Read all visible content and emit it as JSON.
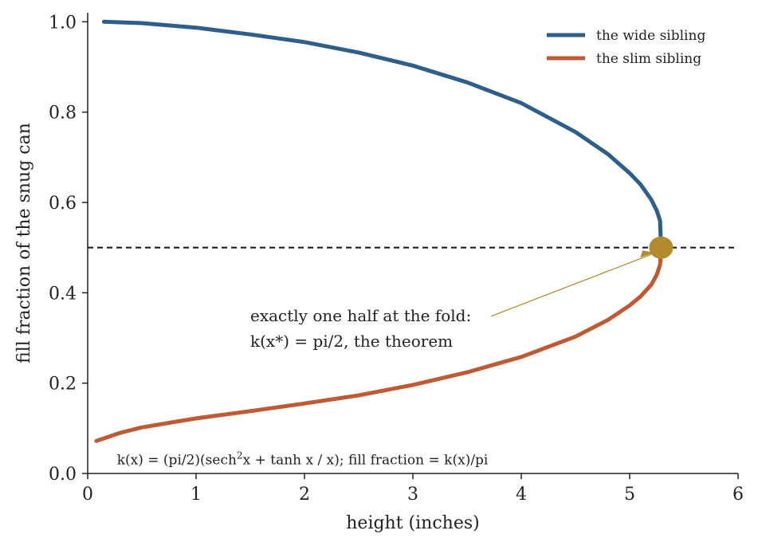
{
  "chart_data": {
    "type": "line",
    "title": "",
    "xlabel": "height (inches)",
    "ylabel": "fill fraction of the snug can",
    "xlim": [
      0,
      6
    ],
    "ylim": [
      0,
      1.02
    ],
    "x_ticks": [
      0,
      1,
      2,
      3,
      4,
      5,
      6
    ],
    "x_tick_labels": [
      "0",
      "1",
      "2",
      "3",
      "4",
      "5",
      "6"
    ],
    "y_ticks": [
      0.0,
      0.2,
      0.4,
      0.6,
      0.8,
      1.0
    ],
    "y_tick_labels": [
      "0.0",
      "0.2",
      "0.4",
      "0.6",
      "0.8",
      "1.0"
    ],
    "grid": false,
    "legend_placement": "top-right",
    "series": [
      {
        "name": "the wide sibling",
        "color": "#2e5f8a",
        "x": [
          0.15,
          0.5,
          1.0,
          1.5,
          2.0,
          2.5,
          3.0,
          3.5,
          4.0,
          4.5,
          4.8,
          5.0,
          5.1,
          5.2,
          5.25,
          5.28,
          5.29
        ],
        "y": [
          1.0,
          0.997,
          0.987,
          0.972,
          0.955,
          0.932,
          0.903,
          0.866,
          0.82,
          0.756,
          0.707,
          0.665,
          0.64,
          0.606,
          0.582,
          0.56,
          0.5
        ]
      },
      {
        "name": "the slim sibling",
        "color": "#c05a34",
        "x": [
          0.08,
          0.3,
          0.5,
          1.0,
          1.5,
          2.0,
          2.5,
          3.0,
          3.5,
          4.0,
          4.5,
          4.8,
          5.0,
          5.1,
          5.2,
          5.25,
          5.28,
          5.29
        ],
        "y": [
          0.072,
          0.09,
          0.102,
          0.122,
          0.138,
          0.155,
          0.173,
          0.196,
          0.224,
          0.258,
          0.303,
          0.34,
          0.372,
          0.392,
          0.418,
          0.44,
          0.462,
          0.5
        ]
      }
    ],
    "reference_line": {
      "y": 0.5,
      "style": "dashed",
      "color": "#111111"
    },
    "fold_point": {
      "x": 5.29,
      "y": 0.5,
      "color": "#b38b2d"
    },
    "annotation": {
      "lines": [
        "exactly one half at the fold:",
        "k(x*) = pi/2, the theorem"
      ],
      "text_x": 1.5,
      "text_y": 0.33,
      "arrow_to_x": 5.2,
      "arrow_to_y": 0.485
    },
    "formula": {
      "prefix": "k(x) = (pi/2)(sech",
      "sup": "2",
      "suffix": "x + tanh x / x); fill fraction = k(x)/pi",
      "x": 0.27,
      "y": 0.02
    }
  }
}
